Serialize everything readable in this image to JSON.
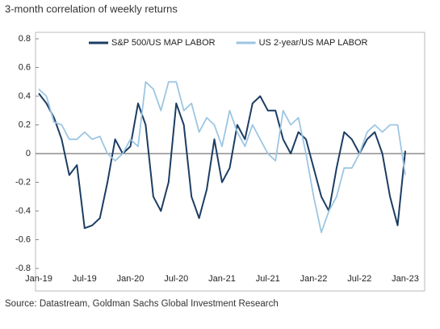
{
  "chart_data": {
    "type": "line",
    "title": "3-month correlation of weekly returns",
    "source": "Source: Datastream, Goldman Sachs Global Investment Research",
    "categories": [
      "Jan-19",
      null,
      null,
      null,
      null,
      null,
      "Jul-19",
      null,
      null,
      null,
      null,
      null,
      "Jan-20",
      null,
      null,
      null,
      null,
      null,
      "Jul-20",
      null,
      null,
      null,
      null,
      null,
      "Jan-21",
      null,
      null,
      null,
      null,
      null,
      "Jul-21",
      null,
      null,
      null,
      null,
      null,
      "Jan-22",
      null,
      null,
      null,
      null,
      null,
      "Jul-22",
      null,
      null,
      null,
      null,
      null,
      "Jan-23"
    ],
    "series": [
      {
        "name": "S&P 500/US MAP LABOR",
        "color": "#1c3d63",
        "values": [
          0.42,
          0.35,
          0.25,
          0.1,
          -0.15,
          -0.08,
          -0.52,
          -0.5,
          -0.45,
          -0.2,
          0.1,
          0.0,
          0.05,
          0.35,
          0.2,
          -0.3,
          -0.4,
          -0.2,
          0.35,
          0.2,
          -0.3,
          -0.45,
          -0.25,
          0.1,
          -0.2,
          -0.1,
          0.2,
          0.1,
          0.35,
          0.4,
          0.3,
          0.3,
          0.1,
          0.0,
          0.15,
          0.1,
          -0.1,
          -0.3,
          -0.4,
          -0.1,
          0.15,
          0.1,
          0.0,
          0.1,
          0.15,
          0.0,
          -0.3,
          -0.5,
          0.02
        ]
      },
      {
        "name": "US 2-year/US MAP LABOR",
        "color": "#9cc6e2",
        "values": [
          0.45,
          0.4,
          0.22,
          0.2,
          0.1,
          0.1,
          0.15,
          0.1,
          0.12,
          0.0,
          -0.05,
          0.0,
          0.1,
          0.05,
          0.5,
          0.45,
          0.3,
          0.5,
          0.5,
          0.3,
          0.35,
          0.15,
          0.25,
          0.2,
          0.05,
          0.3,
          0.15,
          0.05,
          0.2,
          0.1,
          0.0,
          -0.05,
          0.3,
          0.2,
          0.25,
          0.0,
          -0.3,
          -0.55,
          -0.4,
          -0.3,
          -0.1,
          -0.1,
          0.0,
          0.15,
          0.2,
          0.15,
          0.2,
          0.2,
          -0.15
        ]
      }
    ],
    "ylim": [
      -0.8,
      0.8
    ],
    "yticks": [
      -0.8,
      -0.6,
      -0.4,
      -0.2,
      0,
      0.2,
      0.4,
      0.6,
      0.8
    ],
    "legend": "top"
  }
}
